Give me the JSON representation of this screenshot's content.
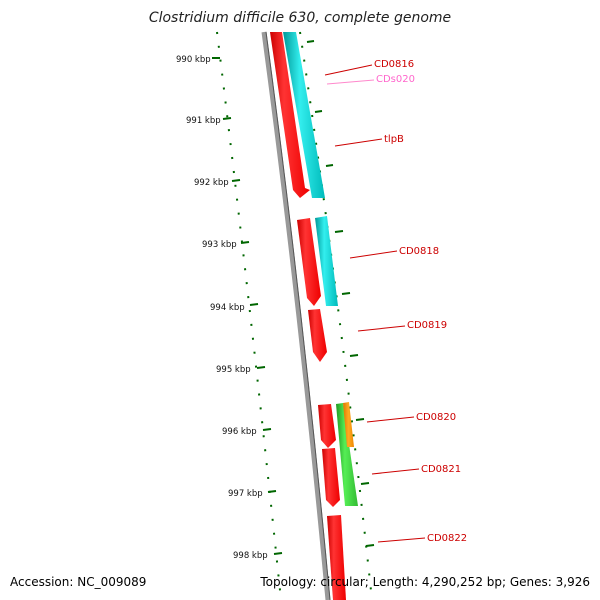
{
  "title": "Clostridium difficile 630, complete genome",
  "footer": {
    "accession": "Accession: NC_009089",
    "summary": "Topology: circular; Length: 4,290,252 bp; Genes: 3,926"
  },
  "ticks": [
    "990 kbp",
    "991 kbp",
    "992 kbp",
    "993 kbp",
    "994 kbp",
    "995 kbp",
    "996 kbp",
    "997 kbp",
    "998 kbp"
  ],
  "gene_labels": [
    "CD0816",
    "CDs020",
    "tlpB",
    "CD0818",
    "CD0819",
    "CD0820",
    "CD0821",
    "CD0822"
  ],
  "colors": {
    "cds": "#ff0000",
    "cds_second_track": "#00cccc",
    "ncRNA_label": "#ff66cc",
    "label": "#cc0000",
    "orange_feature": "#ff9900",
    "green_feature": "#33cc33",
    "tick": "#006600",
    "backbone": "#888888"
  }
}
